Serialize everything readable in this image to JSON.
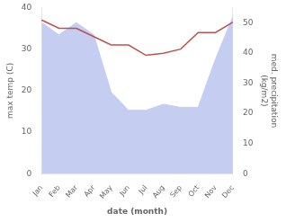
{
  "chart_data": {
    "type": "line",
    "xlabel": "date (month)",
    "ylabel": "max temp (C)",
    "y2label": "med. precipitation\n(kg/m2)",
    "categories": [
      "Jan",
      "Feb",
      "Mar",
      "Apr",
      "May",
      "Jun",
      "Jul",
      "Aug",
      "Sep",
      "Oct",
      "Nov",
      "Dec"
    ],
    "series": [
      {
        "type": "area",
        "axis": "y2",
        "color": "#c5cef0",
        "values": [
          50,
          46,
          50,
          46,
          27,
          21,
          21,
          23,
          22,
          22,
          38,
          52
        ]
      },
      {
        "type": "line",
        "color": "#c0504d",
        "values": [
          37,
          35,
          35,
          33,
          31,
          31,
          28.5,
          29,
          30,
          34,
          34,
          36.5
        ]
      }
    ],
    "ylim": [
      0,
      40
    ],
    "yticks": [
      0,
      10,
      20,
      30,
      40
    ],
    "y2lim": [
      0,
      55
    ],
    "y2ticks": [
      0,
      10,
      20,
      30,
      40,
      50
    ],
    "grid": false
  }
}
